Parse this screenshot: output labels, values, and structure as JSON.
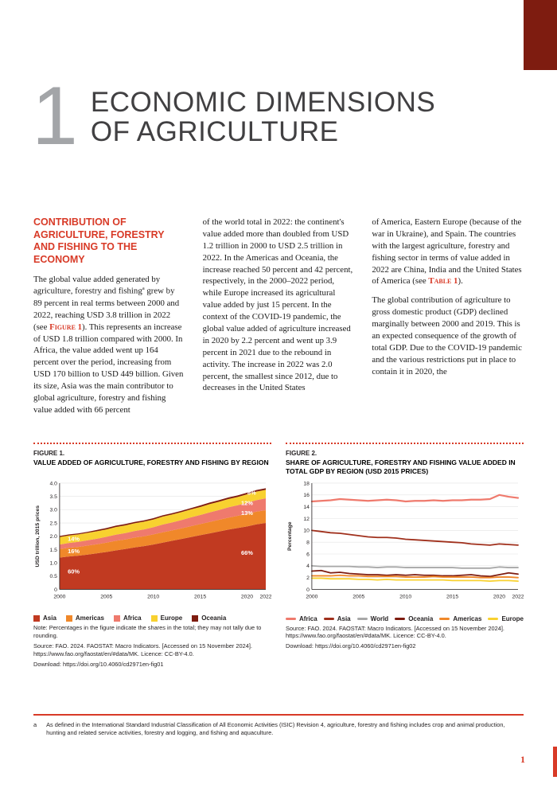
{
  "colors": {
    "accent": "#d83a27",
    "dark": "#7e1c10"
  },
  "page": {
    "number": "1",
    "chapter_number": "1",
    "title_line1": "ECONOMIC DIMENSIONS",
    "title_line2": "OF AGRICULTURE"
  },
  "article": {
    "heading": "CONTRIBUTION OF AGRICULTURE, FORESTRY AND FISHING TO THE ECONOMY",
    "col1": [
      [
        {
          "t": "The global value added generated by agriculture, forestry and fishing"
        },
        {
          "t": "a",
          "s": "sup"
        },
        {
          "t": " grew by 89 percent in real terms between 2000 and 2022, reaching USD 3.8 trillion in 2022  (see "
        },
        {
          "t": "Figure 1",
          "s": "ref"
        },
        {
          "t": "). This represents an increase of USD 1.8 trillion compared with 2000. In Africa, the value added went up 164 percent over the period, increasing from USD 170 billion to USD 449 billion. Given its size, Asia was the main contributor to global agriculture, forestry and fishing value added with 66 percent"
        }
      ]
    ],
    "col2": [
      [
        {
          "t": "of the world total in 2022: the continent's value added more than doubled from USD 1.2 trillion in 2000 to USD 2.5 trillion in 2022. In the Americas and Oceania, the increase reached 50 percent and 42 percent, respectively, in the 2000–2022 period, while Europe increased its agricultural value added by just 15 percent. In the context of the COVID-19 pandemic, the global value added of agriculture increased in 2020 by 2.2 percent and went up 3.9 percent in 2021 due to the rebound in activity. The increase in 2022 was 2.0 percent, the smallest since 2012, due to decreases in the United States"
        }
      ]
    ],
    "col3": [
      [
        {
          "t": "of America, Eastern Europe (because of the war in Ukraine), and Spain. The countries with the largest agriculture, forestry and fishing sector in terms of value added in 2022 are China, India and the United States of America (see "
        },
        {
          "t": "Table 1",
          "s": "ref"
        },
        {
          "t": ")."
        }
      ],
      [
        {
          "t": "The global contribution of agriculture to gross domestic product (GDP) declined marginally between 2000 and 2019. This is an expected consequence of the growth of total GDP. Due to the COVID-19 pandemic and the various restrictions put in place to contain it in 2020, the"
        }
      ]
    ]
  },
  "figures": {
    "fig1": {
      "label": "FIGURE 1.",
      "title": "VALUE ADDED OF AGRICULTURE, FORESTRY AND FISHING BY REGION",
      "note": "Note: Percentages in the figure indicate the shares in the total; they may not tally due to rounding.",
      "source": "Source: FAO. 2024. FAOSTAT: Macro Indicators. [Accessed on 15 November 2024]. https://www.fao.org/faostat/en/#data/MK. Licence: CC-BY-4.0.",
      "download": "Download: https://doi.org/10.4060/cd2971en-fig01"
    },
    "fig2": {
      "label": "FIGURE 2.",
      "title": "SHARE OF AGRICULTURE, FORESTRY AND FISHING VALUE ADDED IN TOTAL GDP BY REGION (USD 2015 PRICES)",
      "source": "Source: FAO. 2024. FAOSTAT: Macro Indicators. [Accessed on 15 November 2024]. https://www.fao.org/faostat/en/#data/MK. Licence: CC-BY-4.0.",
      "download": "Download: https://doi.org/10.4060/cd2971en-fig02"
    }
  },
  "footnote": {
    "marker": "a",
    "text": "As defined in the International Standard Industrial Classification of All Economic Activities (ISIC) Revision 4, agriculture, forestry and fishing includes crop and animal production, hunting and related service activities, forestry and logging, and fishing and aquaculture."
  },
  "chart_data": [
    {
      "type": "area",
      "title": "VALUE ADDED OF AGRICULTURE, FORESTRY AND FISHING BY REGION",
      "xlabel": "",
      "ylabel": "USD trillion, 2015 prices",
      "xlim": [
        2000,
        2022
      ],
      "ylim": [
        0,
        4
      ],
      "xticks": [
        2000,
        2005,
        2010,
        2015,
        2020,
        2022
      ],
      "yticks": {
        "values": [
          0,
          0.5,
          1,
          1.5,
          2,
          2.5,
          3,
          3.5,
          4
        ],
        "labels": [
          "0",
          "0.5",
          "1.0",
          "1.5",
          "2.0",
          "2.5",
          "3.0",
          "3.5",
          "4.0"
        ]
      },
      "x": [
        2000,
        2001,
        2002,
        2003,
        2004,
        2005,
        2006,
        2007,
        2008,
        2009,
        2010,
        2011,
        2012,
        2013,
        2014,
        2015,
        2016,
        2017,
        2018,
        2019,
        2020,
        2021,
        2022
      ],
      "series": [
        {
          "name": "Asia",
          "color": "#c13a21",
          "values": [
            1.2,
            1.24,
            1.27,
            1.31,
            1.36,
            1.41,
            1.47,
            1.52,
            1.58,
            1.63,
            1.69,
            1.76,
            1.83,
            1.9,
            1.97,
            2.04,
            2.11,
            2.18,
            2.25,
            2.31,
            2.37,
            2.45,
            2.5
          ]
        },
        {
          "name": "Americas",
          "color": "#f0882a",
          "values": [
            0.32,
            0.33,
            0.33,
            0.34,
            0.34,
            0.35,
            0.36,
            0.36,
            0.37,
            0.37,
            0.38,
            0.39,
            0.39,
            0.4,
            0.41,
            0.42,
            0.43,
            0.44,
            0.45,
            0.46,
            0.47,
            0.48,
            0.48
          ]
        },
        {
          "name": "Africa",
          "color": "#ef7a6d",
          "values": [
            0.17,
            0.18,
            0.19,
            0.2,
            0.21,
            0.22,
            0.23,
            0.24,
            0.25,
            0.26,
            0.27,
            0.29,
            0.3,
            0.31,
            0.33,
            0.34,
            0.36,
            0.37,
            0.39,
            0.4,
            0.42,
            0.43,
            0.45
          ]
        },
        {
          "name": "Europe",
          "color": "#f8d12f",
          "values": [
            0.28,
            0.28,
            0.28,
            0.28,
            0.28,
            0.28,
            0.29,
            0.29,
            0.29,
            0.29,
            0.29,
            0.3,
            0.3,
            0.3,
            0.3,
            0.3,
            0.31,
            0.31,
            0.31,
            0.31,
            0.32,
            0.32,
            0.32
          ]
        },
        {
          "name": "Oceania",
          "color": "#7e1c10",
          "values": [
            0.04,
            0.04,
            0.04,
            0.04,
            0.05,
            0.05,
            0.05,
            0.05,
            0.05,
            0.05,
            0.05,
            0.05,
            0.05,
            0.05,
            0.05,
            0.06,
            0.06,
            0.06,
            0.06,
            0.06,
            0.06,
            0.06,
            0.06
          ]
        }
      ],
      "annotations": [
        {
          "text": "60%",
          "x": 2001.5,
          "y": 0.6
        },
        {
          "text": "16%",
          "x": 2001.5,
          "y": 1.36
        },
        {
          "text": "14%",
          "x": 2001.5,
          "y": 1.83
        },
        {
          "text": "66%",
          "x": 2020,
          "y": 1.3
        },
        {
          "text": "13%",
          "x": 2020,
          "y": 2.8
        },
        {
          "text": "12%",
          "x": 2020,
          "y": 3.17
        },
        {
          "text": "8%",
          "x": 2020.5,
          "y": 3.57
        }
      ],
      "grid": true,
      "legend_position": "bottom"
    },
    {
      "type": "line",
      "title": "SHARE OF AGRICULTURE, FORESTRY AND FISHING VALUE ADDED IN TOTAL GDP BY REGION (USD 2015 PRICES)",
      "xlabel": "",
      "ylabel": "Percentage",
      "xlim": [
        2000,
        2022
      ],
      "ylim": [
        0,
        18
      ],
      "xticks": [
        2000,
        2005,
        2010,
        2015,
        2020,
        2022
      ],
      "yticks": {
        "values": [
          0,
          2,
          4,
          6,
          8,
          10,
          12,
          14,
          16,
          18
        ],
        "labels": [
          "0",
          "2",
          "4",
          "6",
          "8",
          "10",
          "12",
          "14",
          "16",
          "18"
        ]
      },
      "x": [
        2000,
        2001,
        2002,
        2003,
        2004,
        2005,
        2006,
        2007,
        2008,
        2009,
        2010,
        2011,
        2012,
        2013,
        2014,
        2015,
        2016,
        2017,
        2018,
        2019,
        2020,
        2021,
        2022
      ],
      "series": [
        {
          "name": "Africa",
          "color": "#ef7a6d",
          "width": 2.2,
          "values": [
            14.9,
            15.0,
            15.1,
            15.3,
            15.2,
            15.1,
            15.0,
            15.1,
            15.2,
            15.1,
            14.9,
            15.0,
            15.0,
            15.1,
            15.0,
            15.1,
            15.1,
            15.2,
            15.2,
            15.3,
            16.0,
            15.7,
            15.5
          ]
        },
        {
          "name": "Asia",
          "color": "#a0301c",
          "width": 1.8,
          "values": [
            10.0,
            9.8,
            9.6,
            9.5,
            9.3,
            9.1,
            8.9,
            8.8,
            8.8,
            8.7,
            8.5,
            8.4,
            8.3,
            8.2,
            8.1,
            8.0,
            7.9,
            7.7,
            7.6,
            7.5,
            7.7,
            7.6,
            7.5
          ]
        },
        {
          "name": "World",
          "color": "#a8a8a8",
          "width": 1.8,
          "values": [
            4.0,
            3.9,
            3.9,
            3.9,
            3.9,
            3.8,
            3.8,
            3.7,
            3.8,
            3.8,
            3.7,
            3.7,
            3.7,
            3.7,
            3.7,
            3.7,
            3.6,
            3.6,
            3.6,
            3.6,
            3.8,
            3.7,
            3.7
          ]
        },
        {
          "name": "Oceania",
          "color": "#7e1c10",
          "width": 1.8,
          "values": [
            3.1,
            3.2,
            2.8,
            2.9,
            2.7,
            2.6,
            2.5,
            2.5,
            2.4,
            2.5,
            2.4,
            2.5,
            2.4,
            2.4,
            2.3,
            2.3,
            2.4,
            2.5,
            2.3,
            2.2,
            2.5,
            2.8,
            2.6
          ]
        },
        {
          "name": "Americas",
          "color": "#f0882a",
          "width": 1.8,
          "values": [
            2.3,
            2.3,
            2.3,
            2.4,
            2.3,
            2.3,
            2.2,
            2.2,
            2.2,
            2.2,
            2.1,
            2.1,
            2.1,
            2.2,
            2.1,
            2.1,
            2.1,
            2.1,
            2.0,
            2.0,
            2.1,
            2.1,
            2.0
          ]
        },
        {
          "name": "Europe",
          "color": "#f8d12f",
          "width": 1.8,
          "values": [
            1.9,
            1.9,
            1.8,
            1.8,
            1.8,
            1.7,
            1.7,
            1.6,
            1.7,
            1.6,
            1.6,
            1.6,
            1.6,
            1.6,
            1.6,
            1.5,
            1.5,
            1.5,
            1.5,
            1.4,
            1.5,
            1.5,
            1.4
          ]
        }
      ],
      "grid": true,
      "legend_position": "bottom"
    }
  ]
}
